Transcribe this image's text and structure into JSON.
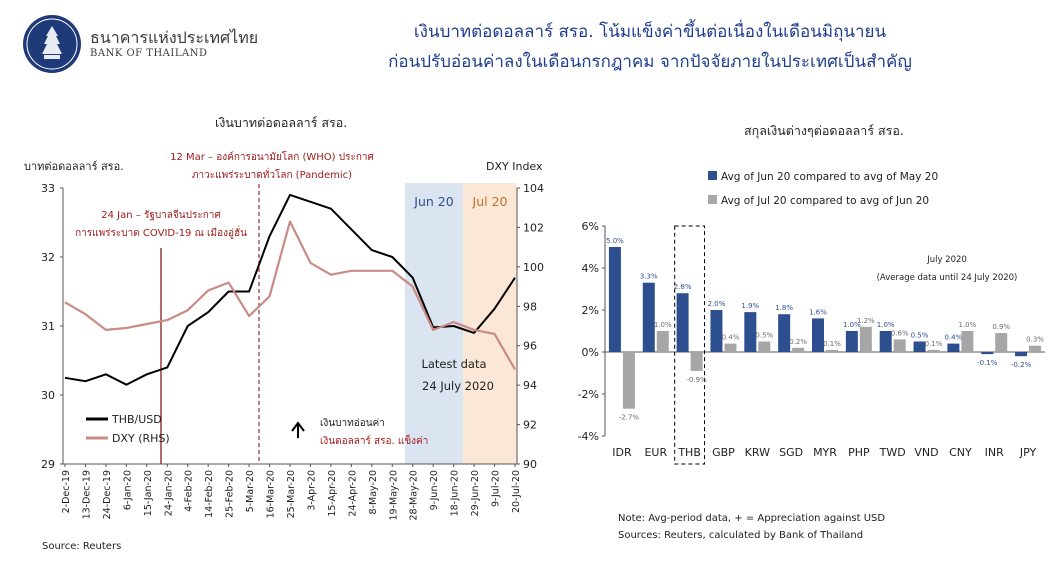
{
  "header": {
    "brand_th": "ธนาคารแห่งประเทศไทย",
    "brand_en": "BANK OF THAILAND",
    "headline_1": "เงินบาทต่อดอลลาร์ สรอ. โน้มแข็งค่าขึ้นต่อเนื่องในเดือนมิถุนายน",
    "headline_2": "ก่อนปรับอ่อนค่าลงในเดือนกรกฎาคม จากปัจจัยภายในประเทศเป็นสำคัญ"
  },
  "left_chart": {
    "title": "เงินบาทต่อดอลลาร์ สรอ.",
    "ylabel_left": "บาทต่อดอลลาร์ สรอ.",
    "ylabel_right": "DXY Index",
    "event1_line1": "24 Jan – รัฐบาลจีนประกาศ",
    "event1_line2": "การแพร่ระบาด COVID-19 ณ เมืองอู่ฮั่น",
    "event2_line1": "12 Mar – องค์การอนามัยโลก (WHO) ประกาศ",
    "event2_line2": "ภาวะแพร่ระบาดทั่วโลก (Pandemic)",
    "band1": "Jun 20",
    "band2": "Jul 20",
    "latest_1": "Latest data",
    "latest_2": "24 July 2020",
    "arrow_text_1": "เงินบาทอ่อนค่า",
    "arrow_text_2": "เงินดอลลาร์ สรอ. แข็งค่า",
    "legend_thb": "THB/USD",
    "legend_dxy": "DXY (RHS)",
    "source": "Source: Reuters"
  },
  "right_chart": {
    "title": "สกุลเงินต่างๆต่อดอลลาร์ สรอ.",
    "legend_1": "Avg of Jun 20 compared to avg of May 20",
    "legend_2": "Avg of Jul 20 compared to avg of Jun 20",
    "annotation_1": "July 2020",
    "annotation_2": "(Average data until 24 July 2020)",
    "note_1": "Note: Avg-period data, + = Appreciation against USD",
    "note_2": "Sources: Reuters, calculated by Bank of Thailand"
  },
  "colors": {
    "navy": "#2e4f8f",
    "grey": "#a6a6a6",
    "thb": "#000000",
    "dxy": "#c98b84",
    "event": "#8b1a1a",
    "jun": "#dbe4f1",
    "jul": "#fbe7d6",
    "title_blue": "#1f3d8f"
  },
  "chart_data": [
    {
      "type": "line",
      "title": "เงินบาทต่อดอลลาร์ สรอ.",
      "ylabel": "บาทต่อดอลลาร์ สรอ.",
      "y2label": "DXY Index",
      "ylim": [
        29,
        33
      ],
      "y2lim": [
        90,
        104
      ],
      "yticks": [
        29,
        30,
        31,
        32,
        33
      ],
      "y2ticks": [
        90,
        92,
        94,
        96,
        98,
        100,
        102,
        104
      ],
      "x": [
        "2-Dec-19",
        "13-Dec-19",
        "24-Dec-19",
        "6-Jan-20",
        "15-Jan-20",
        "24-Jan-20",
        "4-Feb-20",
        "14-Feb-20",
        "25-Feb-20",
        "5-Mar-20",
        "16-Mar-20",
        "25-Mar-20",
        "3-Apr-20",
        "15-Apr-20",
        "24-Apr-20",
        "8-May-20",
        "19-May-20",
        "28-May-20",
        "9-Jun-20",
        "18-Jun-20",
        "29-Jun-20",
        "9-Jul-20",
        "20-Jul-20"
      ],
      "series": [
        {
          "name": "THB/USD",
          "axis": "left",
          "values": [
            30.25,
            30.2,
            30.3,
            30.15,
            30.3,
            30.4,
            31.0,
            31.2,
            31.5,
            31.5,
            32.3,
            32.9,
            32.8,
            32.7,
            32.4,
            32.1,
            32.0,
            31.7,
            30.98,
            31.0,
            30.9,
            31.25,
            31.7
          ]
        },
        {
          "name": "DXY (RHS)",
          "axis": "right",
          "values": [
            98.2,
            97.6,
            96.8,
            96.9,
            97.1,
            97.3,
            97.8,
            98.8,
            99.2,
            97.5,
            98.5,
            102.3,
            100.2,
            99.6,
            99.8,
            99.8,
            99.8,
            99.0,
            96.8,
            97.2,
            96.8,
            96.6,
            94.8
          ]
        }
      ],
      "events": [
        {
          "x": "24-Jan-20"
        },
        {
          "x": "12-Mar-20"
        }
      ],
      "shaded": [
        {
          "label": "Jun 20",
          "from": "1-Jun-20",
          "to": "30-Jun-20"
        },
        {
          "label": "Jul 20",
          "from": "1-Jul-20",
          "to": "24-Jul-20"
        }
      ]
    },
    {
      "type": "bar",
      "title": "สกุลเงินต่างๆต่อดอลลาร์ สรอ.",
      "categories": [
        "IDR",
        "EUR",
        "THB",
        "GBP",
        "KRW",
        "SGD",
        "MYR",
        "PHP",
        "TWD",
        "VND",
        "CNY",
        "INR",
        "JPY"
      ],
      "ylim": [
        -4,
        6
      ],
      "yticks": [
        "-4%",
        "-2%",
        "0%",
        "2%",
        "4%",
        "6%"
      ],
      "series": [
        {
          "name": "Avg of Jun 20 compared to avg of May 20",
          "values": [
            5.0,
            3.3,
            2.8,
            2.0,
            1.9,
            1.8,
            1.6,
            1.0,
            1.0,
            0.5,
            0.4,
            -0.1,
            -0.2
          ],
          "labels": [
            "5.0%",
            "3.3%",
            "2.8%",
            "2.0%",
            "1.9%",
            "1.8%",
            "1.6%",
            "1.0%",
            "1.0%",
            "0.5%",
            "0.4%",
            "-0.1%",
            "-0.2%"
          ]
        },
        {
          "name": "Avg of Jul 20 compared to avg of Jun 20",
          "values": [
            -2.7,
            1.0,
            -0.9,
            0.4,
            0.5,
            0.2,
            0.1,
            1.2,
            0.6,
            0.1,
            1.0,
            0.9,
            0.3
          ],
          "labels": [
            "-2.7%",
            "1.0%",
            "-0.9%",
            "0.4%",
            "0.5%",
            "0.2%",
            "0.1%",
            "1.2%",
            "0.6%",
            "0.1%",
            "1.0%",
            "0.9%",
            "0.3%"
          ]
        }
      ],
      "highlight": "THB"
    }
  ]
}
